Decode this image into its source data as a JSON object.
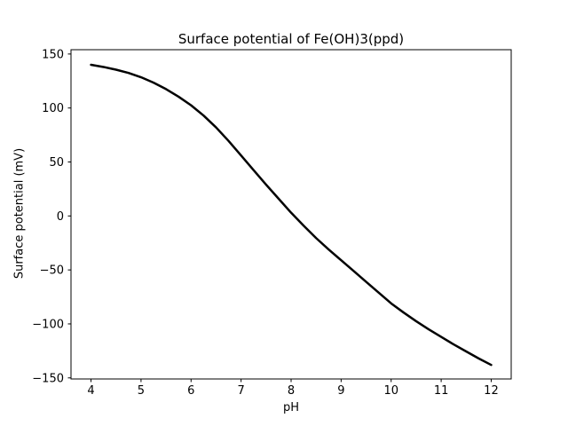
{
  "figure": {
    "background": "#ffffff",
    "axes_edge_color": "#000000",
    "text_color": "#000000"
  },
  "chart_data": {
    "type": "line",
    "title": "Surface potential of Fe(OH)3(ppd)",
    "xlabel": "pH",
    "ylabel": "Surface potential (mV)",
    "xlim": [
      3.6,
      12.4
    ],
    "ylim": [
      -151,
      154
    ],
    "xticks": [
      4,
      5,
      6,
      7,
      8,
      9,
      10,
      11,
      12
    ],
    "xtick_labels": [
      "4",
      "5",
      "6",
      "7",
      "8",
      "9",
      "10",
      "11",
      "12"
    ],
    "yticks": [
      150,
      100,
      50,
      0,
      -50,
      -100,
      -150
    ],
    "ytick_labels": [
      "150",
      "100",
      "50",
      "0",
      "−50",
      "−100",
      "−150"
    ],
    "grid": false,
    "legend": null,
    "zero_crossing_ph": 8.05,
    "series": [
      {
        "name": "surface-potential-curve",
        "color": "#000000",
        "linewidth": 2.5,
        "x": [
          4,
          4.25,
          4.5,
          4.75,
          5,
          5.25,
          5.5,
          5.75,
          6,
          6.25,
          6.5,
          6.75,
          7,
          7.25,
          7.5,
          7.75,
          8,
          8.25,
          8.5,
          8.75,
          9,
          9.25,
          9.5,
          9.75,
          10,
          10.25,
          10.5,
          10.75,
          11,
          11.25,
          11.5,
          11.75,
          12
        ],
        "y": [
          140,
          138,
          135.5,
          132.5,
          128.5,
          123.5,
          117.5,
          110.5,
          102.5,
          93,
          82,
          69.5,
          56,
          42.5,
          29,
          16,
          3,
          -9,
          -20.5,
          -31,
          -41,
          -51,
          -61,
          -71,
          -81,
          -89.5,
          -97.5,
          -105,
          -112,
          -119,
          -125.5,
          -132,
          -138
        ]
      }
    ]
  }
}
